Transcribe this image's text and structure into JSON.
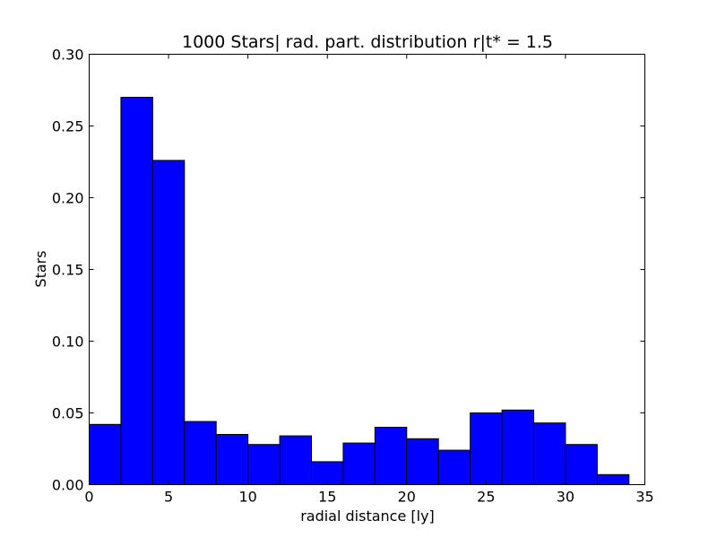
{
  "chart_data": {
    "type": "bar",
    "title": "1000 Stars| rad. part. distribution r|t* = 1.5",
    "xlabel": "radial distance [ly]",
    "ylabel": "Stars",
    "xlim": [
      0,
      35
    ],
    "ylim": [
      0,
      0.3
    ],
    "bin_width": 2,
    "bin_edges": [
      0,
      2,
      4,
      6,
      8,
      10,
      12,
      14,
      16,
      18,
      20,
      22,
      24,
      26,
      28,
      30,
      32,
      34
    ],
    "values": [
      0.042,
      0.27,
      0.226,
      0.044,
      0.035,
      0.028,
      0.034,
      0.016,
      0.029,
      0.04,
      0.032,
      0.024,
      0.05,
      0.052,
      0.043,
      0.028,
      0.007
    ],
    "xticks": [
      "0",
      "5",
      "10",
      "15",
      "20",
      "25",
      "30",
      "35"
    ],
    "yticks": [
      "0.00",
      "0.05",
      "0.10",
      "0.15",
      "0.20",
      "0.25",
      "0.30"
    ],
    "bar_color": "#0000ff",
    "edge_color": "#000000",
    "grid": false,
    "legend": "none"
  }
}
